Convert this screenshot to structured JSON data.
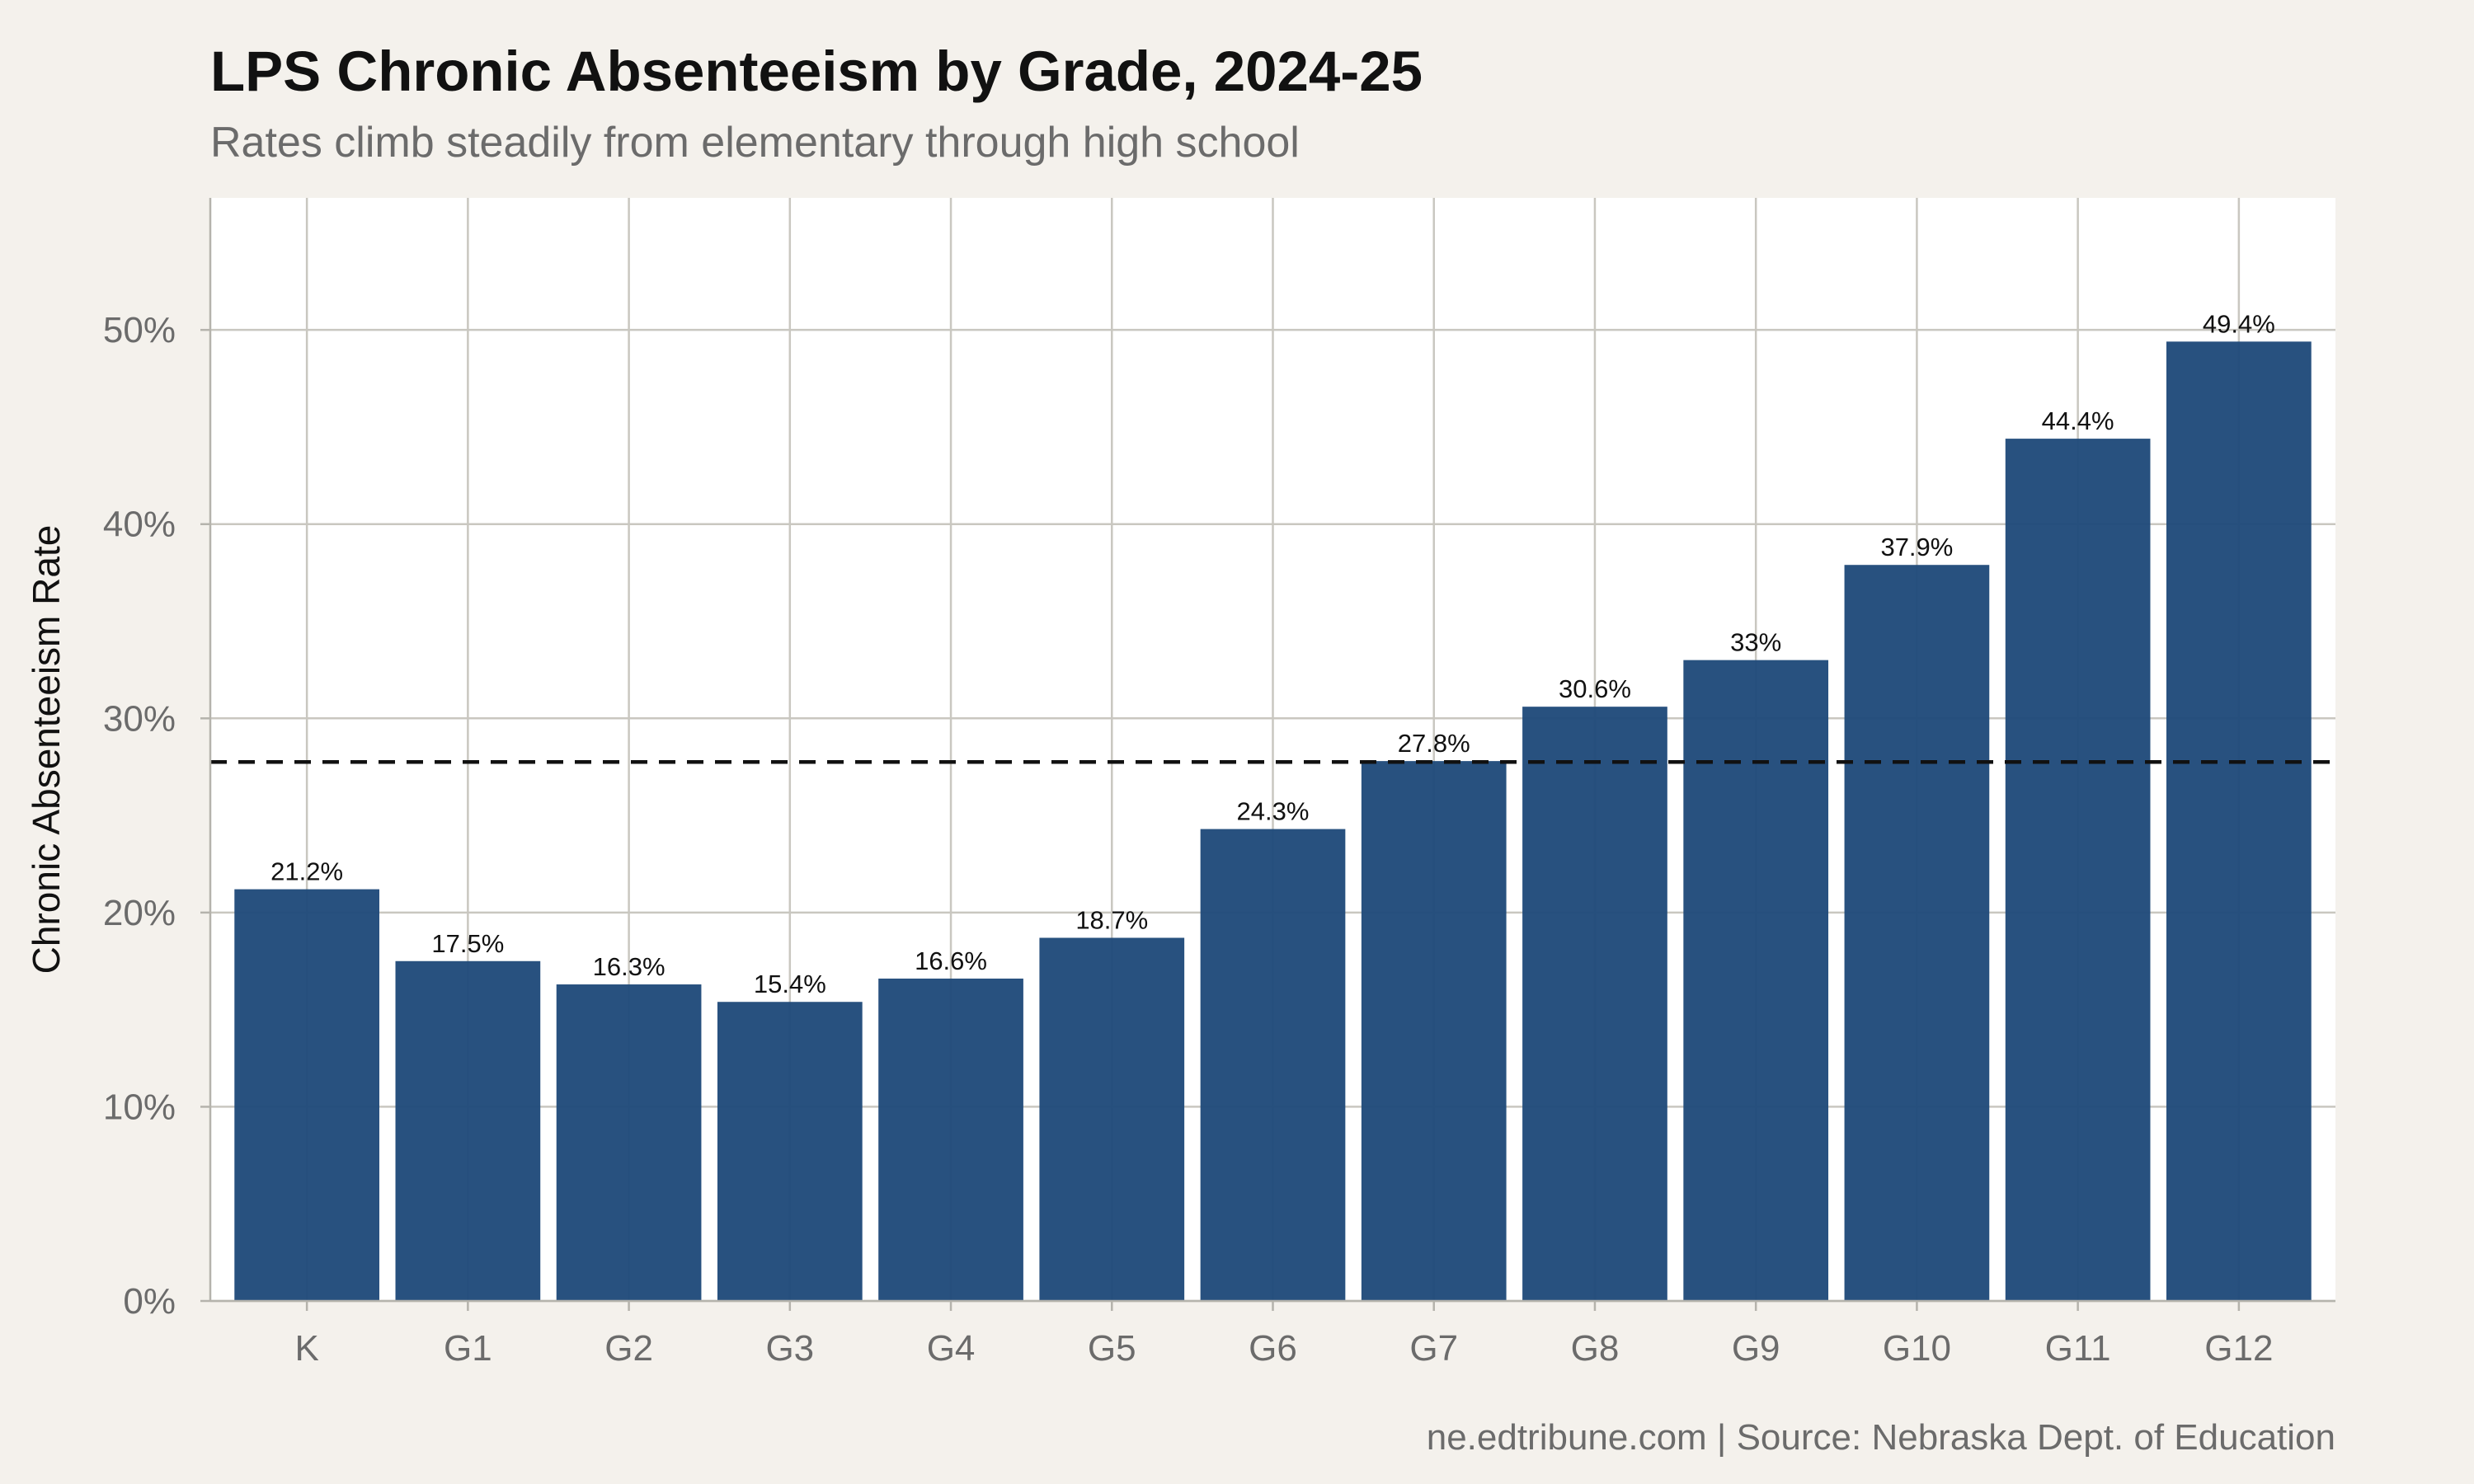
{
  "chart_data": {
    "type": "bar",
    "title": "LPS Chronic Absenteeism by Grade, 2024-25",
    "subtitle": "Rates climb steadily from elementary through high school",
    "xlabel": "",
    "ylabel": "Chronic Absenteeism Rate",
    "categories": [
      "K",
      "G1",
      "G2",
      "G3",
      "G4",
      "G5",
      "G6",
      "G7",
      "G8",
      "G9",
      "G10",
      "G11",
      "G12"
    ],
    "values": [
      21.2,
      17.5,
      16.3,
      15.4,
      16.6,
      18.7,
      24.3,
      27.8,
      30.6,
      33,
      37.9,
      44.4,
      49.4
    ],
    "value_labels": [
      "21.2%",
      "17.5%",
      "16.3%",
      "15.4%",
      "16.6%",
      "18.7%",
      "24.3%",
      "27.8%",
      "30.6%",
      "33%",
      "37.9%",
      "44.4%",
      "49.4%"
    ],
    "ylim": [
      0,
      56.8
    ],
    "yticks": [
      0,
      10,
      20,
      30,
      40,
      50
    ],
    "ytick_labels": [
      "0%",
      "10%",
      "20%",
      "30%",
      "40%",
      "50%"
    ],
    "reference_line": {
      "value": 27.75,
      "style": "dashed"
    },
    "grid": true,
    "legend": "none",
    "caption": "ne.edtribune.com | Source: Nebraska Dept. of Education",
    "colors": {
      "bar": "#1F4A7A",
      "background": "#F4F1EC",
      "panel": "#FFFFFF",
      "grid": "#C9C7C0",
      "reference_line": "#111111"
    }
  }
}
